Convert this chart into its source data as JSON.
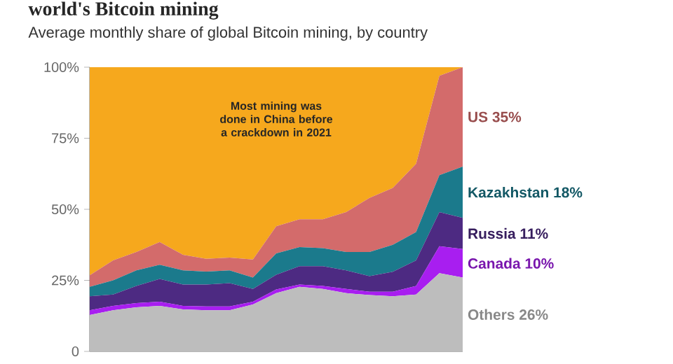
{
  "chart_data": {
    "type": "area",
    "title": "world's Bitcoin mining",
    "subtitle": "Average monthly share of global Bitcoin mining, by country",
    "categories": [
      null,
      null,
      null,
      null,
      null,
      null,
      null,
      null,
      null,
      null,
      null,
      null,
      null,
      null,
      null,
      null,
      null
    ],
    "stacked": true,
    "ylim": [
      0,
      100
    ],
    "yticks": [
      0,
      {
        "value": 25,
        "label": "25%"
      },
      {
        "value": 50,
        "label": "50%"
      },
      {
        "value": 75,
        "label": "75%"
      },
      {
        "value": 100,
        "label": "100%"
      }
    ],
    "tick_labels": "y",
    "grid": false,
    "annotations": [
      "Most mining was done in China before a crackdown in 2021"
    ],
    "series": [
      {
        "name": "Others 26%",
        "color": "#bdbdbd",
        "values": [
          12.8,
          14.5,
          15.5,
          16,
          14.8,
          14.5,
          14.5,
          16.5,
          20.5,
          22.7,
          22,
          20.5,
          19.8,
          19.4,
          20,
          27.5,
          26
        ]
      },
      {
        "name": "Canada 10%",
        "color": "#a81ef0",
        "values": [
          1.7,
          1.5,
          1.5,
          1.5,
          1.2,
          1.3,
          1.3,
          1,
          1.3,
          0.8,
          1,
          1.5,
          1.2,
          1.6,
          3,
          9.5,
          10
        ]
      },
      {
        "name": "Russia 11%",
        "color": "#4d2a82",
        "values": [
          4.9,
          4,
          6,
          8,
          7.5,
          7.7,
          8.2,
          4.5,
          5.2,
          6.5,
          7,
          6.5,
          5.5,
          7,
          9,
          12,
          11
        ]
      },
      {
        "name": "Kazakhstan 18%",
        "color": "#1b7a8c",
        "values": [
          3.3,
          5,
          5.5,
          5,
          5,
          4.6,
          4.5,
          4,
          7.5,
          6.7,
          6.3,
          6.5,
          8.5,
          9.5,
          10,
          13,
          18
        ]
      },
      {
        "name": "US 35%",
        "color": "#d36b6b",
        "values": [
          4.1,
          7,
          6.5,
          8,
          5.5,
          4.5,
          4.5,
          6.3,
          9.5,
          9.8,
          10.2,
          14,
          19,
          20,
          24,
          35,
          35
        ]
      },
      {
        "color": "#f6a81d",
        "values": [
          73.2,
          68,
          65,
          61.5,
          66,
          67.4,
          67,
          67.7,
          56,
          53.5,
          53.5,
          51,
          46,
          42.5,
          34,
          3,
          0
        ]
      }
    ]
  }
}
